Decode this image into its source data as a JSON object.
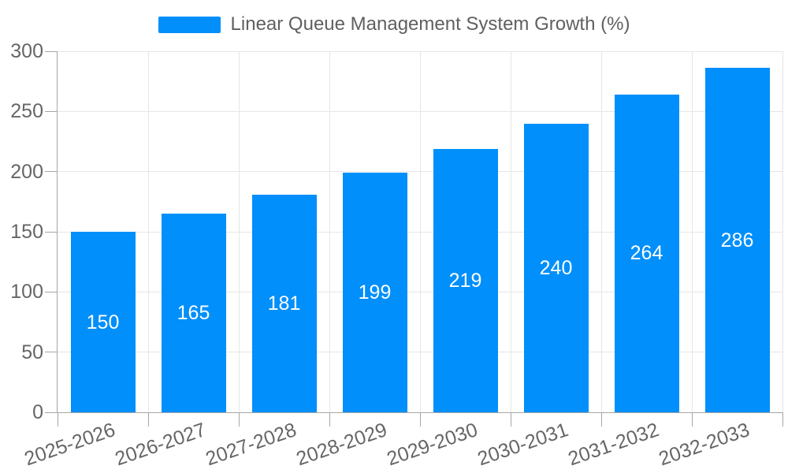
{
  "chart_data": {
    "type": "bar",
    "title": "Linear Queue Management System Growth (%)",
    "categories": [
      "2025-2026",
      "2026-2027",
      "2027-2028",
      "2028-2029",
      "2029-2030",
      "2030-2031",
      "2031-2032",
      "2032-2033"
    ],
    "values": [
      150,
      165,
      181,
      199,
      219,
      240,
      264,
      286
    ],
    "xlabel": "",
    "ylabel": "",
    "ylim": [
      0,
      300
    ],
    "yticks": [
      0,
      50,
      100,
      150,
      200,
      250,
      300
    ],
    "grid": true,
    "legend_position": "top",
    "colors": {
      "bar": "#008FFB",
      "value_label": "#ffffff",
      "axis_label": "#666666",
      "title": "#5f6062",
      "grid_line": "#e6e6e6",
      "axis_line": "#a6a6a6"
    }
  }
}
